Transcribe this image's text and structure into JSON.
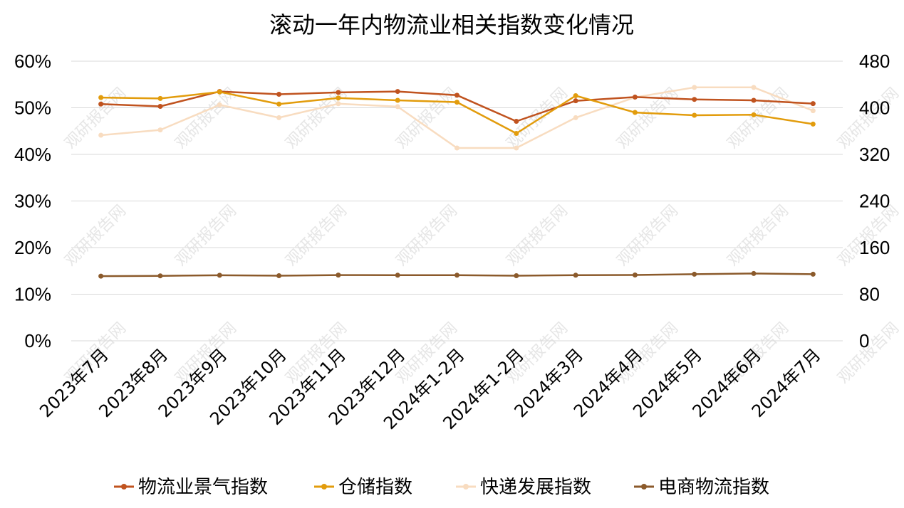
{
  "chart_data": {
    "type": "line",
    "title": "滚动一年内物流业相关指数变化情况",
    "categories": [
      "2023年7月",
      "2023年8月",
      "2023年9月",
      "2023年10月",
      "2023年11月",
      "2023年12月",
      "2024年1-2月",
      "2024年1-2月",
      "2024年3月",
      "2024年4月",
      "2024年5月",
      "2024年6月",
      "2024年7月"
    ],
    "y_left": {
      "ticks": [
        "0%",
        "10%",
        "20%",
        "30%",
        "40%",
        "50%",
        "60%"
      ],
      "range": [
        0,
        60
      ]
    },
    "y_right": {
      "ticks": [
        "0",
        "80",
        "160",
        "240",
        "320",
        "400",
        "480"
      ],
      "range": [
        0,
        480
      ]
    },
    "grid": true,
    "legend_position": "bottom",
    "series": [
      {
        "name": "物流业景气指数",
        "axis": "left",
        "color": "#c0531f",
        "values": [
          50.8,
          50.3,
          53.5,
          52.9,
          53.3,
          53.5,
          52.7,
          47.1,
          51.5,
          52.3,
          51.8,
          51.6,
          50.9
        ]
      },
      {
        "name": "仓储指数",
        "axis": "left",
        "color": "#e29c0c",
        "values": [
          52.2,
          52.0,
          53.4,
          50.8,
          52.1,
          51.6,
          51.2,
          44.5,
          52.6,
          49.0,
          48.4,
          48.5,
          46.5
        ]
      },
      {
        "name": "快递发展指数",
        "axis": "right",
        "color": "#f8dcc0",
        "values": [
          353,
          362,
          405,
          383,
          407,
          402,
          331,
          331,
          383,
          418,
          435,
          435,
          395
        ]
      },
      {
        "name": "电商物流指数",
        "axis": "right",
        "color": "#8b5a2b",
        "values": [
          111,
          111.5,
          112.5,
          111.8,
          112.8,
          112.6,
          112.6,
          111.8,
          112.6,
          113.0,
          114.3,
          115.5,
          114.3
        ]
      }
    ]
  }
}
